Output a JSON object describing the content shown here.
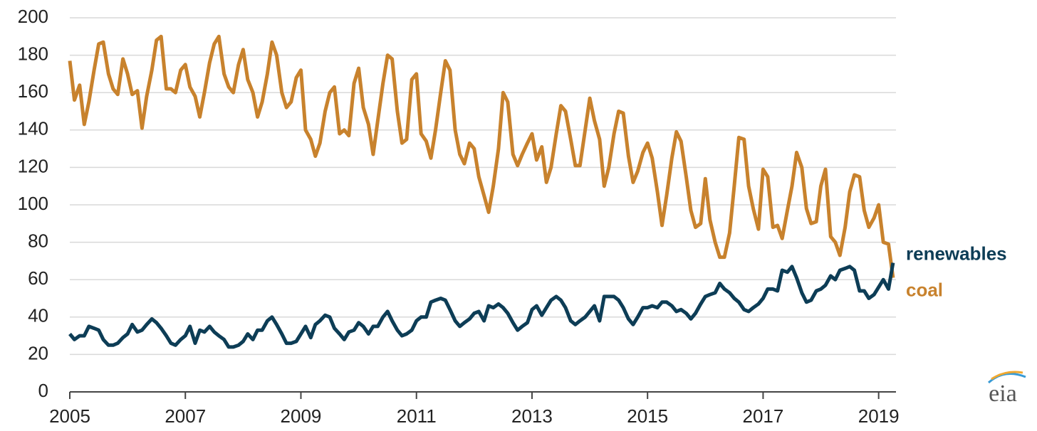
{
  "chart_data": {
    "type": "line",
    "x": [
      2005.0,
      2005.08,
      2005.17,
      2005.25,
      2005.33,
      2005.42,
      2005.5,
      2005.58,
      2005.67,
      2005.75,
      2005.83,
      2005.92,
      2006.0,
      2006.08,
      2006.17,
      2006.25,
      2006.33,
      2006.42,
      2006.5,
      2006.58,
      2006.67,
      2006.75,
      2006.83,
      2006.92,
      2007.0,
      2007.08,
      2007.17,
      2007.25,
      2007.33,
      2007.42,
      2007.5,
      2007.58,
      2007.67,
      2007.75,
      2007.83,
      2007.92,
      2008.0,
      2008.08,
      2008.17,
      2008.25,
      2008.33,
      2008.42,
      2008.5,
      2008.58,
      2008.67,
      2008.75,
      2008.83,
      2008.92,
      2009.0,
      2009.08,
      2009.17,
      2009.25,
      2009.33,
      2009.42,
      2009.5,
      2009.58,
      2009.67,
      2009.75,
      2009.83,
      2009.92,
      2010.0,
      2010.08,
      2010.17,
      2010.25,
      2010.33,
      2010.42,
      2010.5,
      2010.58,
      2010.67,
      2010.75,
      2010.83,
      2010.92,
      2011.0,
      2011.08,
      2011.17,
      2011.25,
      2011.33,
      2011.42,
      2011.5,
      2011.58,
      2011.67,
      2011.75,
      2011.83,
      2011.92,
      2012.0,
      2012.08,
      2012.17,
      2012.25,
      2012.33,
      2012.42,
      2012.5,
      2012.58,
      2012.67,
      2012.75,
      2012.83,
      2012.92,
      2013.0,
      2013.08,
      2013.17,
      2013.25,
      2013.33,
      2013.42,
      2013.5,
      2013.58,
      2013.67,
      2013.75,
      2013.83,
      2013.92,
      2014.0,
      2014.08,
      2014.17,
      2014.25,
      2014.33,
      2014.42,
      2014.5,
      2014.58,
      2014.67,
      2014.75,
      2014.83,
      2014.92,
      2015.0,
      2015.08,
      2015.17,
      2015.25,
      2015.33,
      2015.42,
      2015.5,
      2015.58,
      2015.67,
      2015.75,
      2015.83,
      2015.92,
      2016.0,
      2016.08,
      2016.17,
      2016.25,
      2016.33,
      2016.42,
      2016.5,
      2016.58,
      2016.67,
      2016.75,
      2016.83,
      2016.92,
      2017.0,
      2017.08,
      2017.17,
      2017.25,
      2017.33,
      2017.42,
      2017.5,
      2017.58,
      2017.67,
      2017.75,
      2017.83,
      2017.92,
      2018.0,
      2018.08,
      2018.17,
      2018.25,
      2018.33,
      2018.42,
      2018.5,
      2018.58,
      2018.67,
      2018.75,
      2018.83,
      2018.92,
      2019.0,
      2019.08,
      2019.17,
      2019.25
    ],
    "series": [
      {
        "name": "coal",
        "color": "#c8822d",
        "values": [
          177,
          156,
          164,
          143,
          155,
          172,
          186,
          187,
          170,
          162,
          159,
          178,
          170,
          159,
          161,
          141,
          158,
          172,
          188,
          190,
          162,
          162,
          160,
          172,
          175,
          163,
          158,
          147,
          160,
          176,
          186,
          190,
          170,
          163,
          160,
          175,
          183,
          167,
          160,
          147,
          155,
          170,
          187,
          180,
          160,
          152,
          155,
          168,
          172,
          140,
          135,
          126,
          133,
          150,
          160,
          163,
          138,
          140,
          137,
          165,
          173,
          152,
          143,
          127,
          145,
          165,
          180,
          178,
          150,
          133,
          135,
          167,
          170,
          138,
          134,
          125,
          140,
          160,
          177,
          172,
          140,
          127,
          122,
          133,
          130,
          115,
          105,
          96,
          110,
          130,
          160,
          155,
          127,
          121,
          127,
          133,
          138,
          124,
          131,
          112,
          120,
          138,
          153,
          150,
          135,
          121,
          121,
          140,
          157,
          145,
          135,
          110,
          120,
          138,
          150,
          149,
          126,
          112,
          118,
          128,
          133,
          125,
          107,
          89,
          105,
          125,
          139,
          134,
          115,
          97,
          88,
          90,
          114,
          92,
          80,
          72,
          72,
          85,
          110,
          136,
          135,
          110,
          98,
          87,
          119,
          115,
          88,
          89,
          82,
          97,
          110,
          128,
          120,
          98,
          90,
          91,
          110,
          119,
          83,
          80,
          73,
          88,
          107,
          116,
          115,
          97,
          88,
          93,
          100,
          80,
          79,
          61
        ]
      },
      {
        "name": "renewables",
        "color": "#0d3d56",
        "values": [
          31,
          28,
          30,
          30,
          35,
          34,
          33,
          28,
          25,
          25,
          26,
          29,
          31,
          36,
          32,
          33,
          36,
          39,
          37,
          34,
          30,
          26,
          25,
          28,
          30,
          35,
          26,
          33,
          32,
          35,
          32,
          30,
          28,
          24,
          24,
          25,
          27,
          31,
          28,
          33,
          33,
          38,
          40,
          36,
          31,
          26,
          26,
          27,
          31,
          35,
          29,
          36,
          38,
          41,
          40,
          34,
          31,
          28,
          32,
          33,
          37,
          35,
          31,
          35,
          35,
          40,
          43,
          38,
          33,
          30,
          31,
          33,
          38,
          40,
          40,
          48,
          49,
          50,
          49,
          44,
          38,
          35,
          37,
          39,
          42,
          43,
          38,
          46,
          45,
          47,
          45,
          42,
          37,
          33,
          35,
          37,
          44,
          46,
          41,
          45,
          49,
          51,
          49,
          45,
          38,
          36,
          38,
          40,
          43,
          46,
          38,
          51,
          51,
          51,
          49,
          45,
          39,
          36,
          40,
          45,
          45,
          46,
          45,
          48,
          48,
          46,
          43,
          44,
          42,
          39,
          42,
          47,
          51,
          52,
          53,
          58,
          55,
          53,
          50,
          48,
          44,
          43,
          45,
          47,
          50,
          55,
          55,
          54,
          65,
          64,
          67,
          61,
          53,
          48,
          49,
          54,
          55,
          57,
          62,
          60,
          65,
          66,
          67,
          65,
          54,
          54,
          50,
          52,
          56,
          60,
          55,
          69
        ]
      }
    ],
    "xlim": [
      2005,
      2019.3
    ],
    "xticks": [
      2005,
      2007,
      2009,
      2011,
      2013,
      2015,
      2017,
      2019
    ],
    "ylim": [
      0,
      200
    ],
    "yticks": [
      0,
      20,
      40,
      60,
      80,
      100,
      120,
      140,
      160,
      180,
      200
    ],
    "grid": true,
    "logo": "eia"
  }
}
